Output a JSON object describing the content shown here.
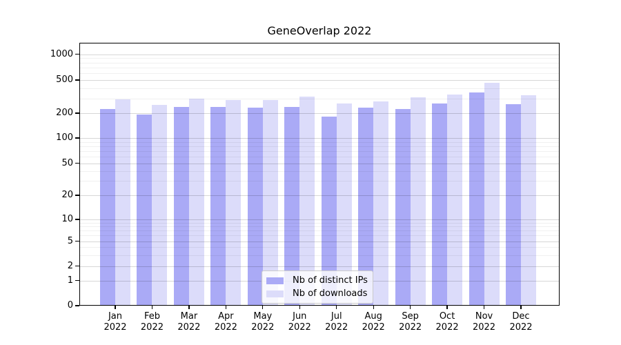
{
  "title": "GeneOverlap 2022",
  "chart_data": {
    "type": "bar",
    "title": "GeneOverlap 2022",
    "categories": [
      "Jan",
      "Feb",
      "Mar",
      "Apr",
      "May",
      "Jun",
      "Jul",
      "Aug",
      "Sep",
      "Oct",
      "Nov",
      "Dec"
    ],
    "year_label": "2022",
    "series": [
      {
        "name": "Nb of distinct IPs",
        "color": "#aaaaf6",
        "values": [
          224,
          191,
          235,
          235,
          234,
          235,
          181,
          231,
          223,
          259,
          353,
          255
        ]
      },
      {
        "name": "Nb of downloads",
        "color": "#dcdcfa",
        "values": [
          291,
          251,
          297,
          288,
          289,
          314,
          259,
          276,
          309,
          333,
          459,
          327
        ]
      }
    ],
    "yscale": "symlog",
    "yticks": [
      0,
      1,
      2,
      5,
      10,
      20,
      50,
      100,
      200,
      500,
      1000
    ],
    "ylim": [
      0,
      1380
    ],
    "grid": true,
    "grid_minor": true,
    "legend_position": "lower center",
    "colors": {
      "grid_major": "#d9d9d9",
      "grid_minor": "#f0f0f0",
      "spine": "#000000",
      "text": "#000000"
    }
  }
}
